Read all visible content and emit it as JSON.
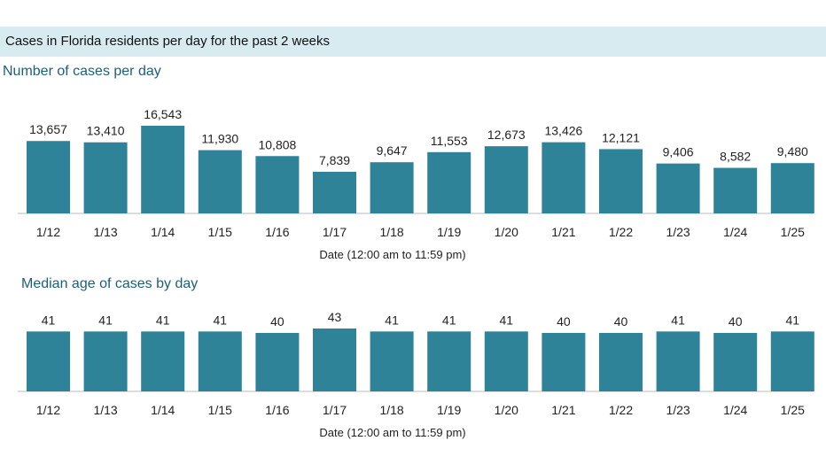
{
  "header": {
    "title": "Cases in Florida residents per day for the past 2 weeks",
    "band_color": "#d7ebf1"
  },
  "colors": {
    "bar": "#2f8398",
    "title": "#1f5f73"
  },
  "chart_data": [
    {
      "type": "bar",
      "title": "Number of cases per day",
      "xlabel": "Date (12:00 am to 11:59 pm)",
      "ylabel": "",
      "categories": [
        "1/12",
        "1/13",
        "1/14",
        "1/15",
        "1/16",
        "1/17",
        "1/18",
        "1/19",
        "1/20",
        "1/21",
        "1/22",
        "1/23",
        "1/24",
        "1/25"
      ],
      "values": [
        13657,
        13410,
        16543,
        11930,
        10808,
        7839,
        9647,
        11553,
        12673,
        13426,
        12121,
        9406,
        8582,
        9480
      ],
      "value_labels": [
        "13,657",
        "13,410",
        "16,543",
        "11,930",
        "10,808",
        "7,839",
        "9,647",
        "11,553",
        "12,673",
        "13,426",
        "12,121",
        "9,406",
        "8,582",
        "9,480"
      ],
      "ylim": [
        0,
        16543
      ],
      "grid": false,
      "legend": "none"
    },
    {
      "type": "bar",
      "title": "Median age of cases by day",
      "xlabel": "Date (12:00 am to 11:59 pm)",
      "ylabel": "",
      "categories": [
        "1/12",
        "1/13",
        "1/14",
        "1/15",
        "1/16",
        "1/17",
        "1/18",
        "1/19",
        "1/20",
        "1/21",
        "1/22",
        "1/23",
        "1/24",
        "1/25"
      ],
      "values": [
        41,
        41,
        41,
        41,
        40,
        43,
        41,
        41,
        41,
        40,
        40,
        41,
        40,
        41
      ],
      "value_labels": [
        "41",
        "41",
        "41",
        "41",
        "40",
        "43",
        "41",
        "41",
        "41",
        "40",
        "40",
        "41",
        "40",
        "41"
      ],
      "ylim": [
        0,
        43
      ],
      "grid": false,
      "legend": "none"
    }
  ]
}
